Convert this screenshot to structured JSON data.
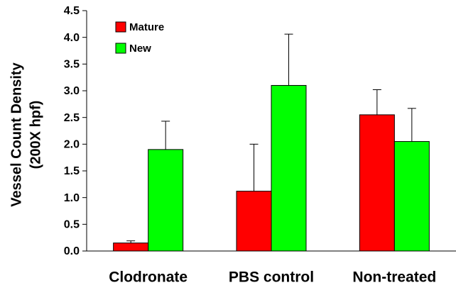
{
  "chart_data": {
    "type": "bar",
    "ylabel": [
      "Vessel Count Density",
      "(200X hpf)"
    ],
    "categories": [
      "Clodronate",
      "PBS control",
      "Non-treated"
    ],
    "series": [
      {
        "name": "Mature",
        "color": "#ff0000",
        "values": [
          0.15,
          1.12,
          2.55
        ],
        "errors": [
          0.04,
          0.88,
          0.47
        ]
      },
      {
        "name": "New",
        "color": "#00ff00",
        "values": [
          1.9,
          3.1,
          2.05
        ],
        "errors": [
          0.53,
          0.96,
          0.62
        ]
      }
    ],
    "ylim": [
      0,
      4.5
    ],
    "yticks": [
      {
        "value": 0,
        "label": "0.0"
      },
      0.5,
      {
        "value": 1,
        "label": "1.0"
      },
      1.5,
      {
        "value": 2,
        "label": "2.0"
      },
      2.5,
      {
        "value": 3,
        "label": "3.0"
      },
      3.5,
      {
        "value": 4,
        "label": "4.0"
      },
      4.5
    ],
    "grid": false,
    "legend": "upper left"
  }
}
